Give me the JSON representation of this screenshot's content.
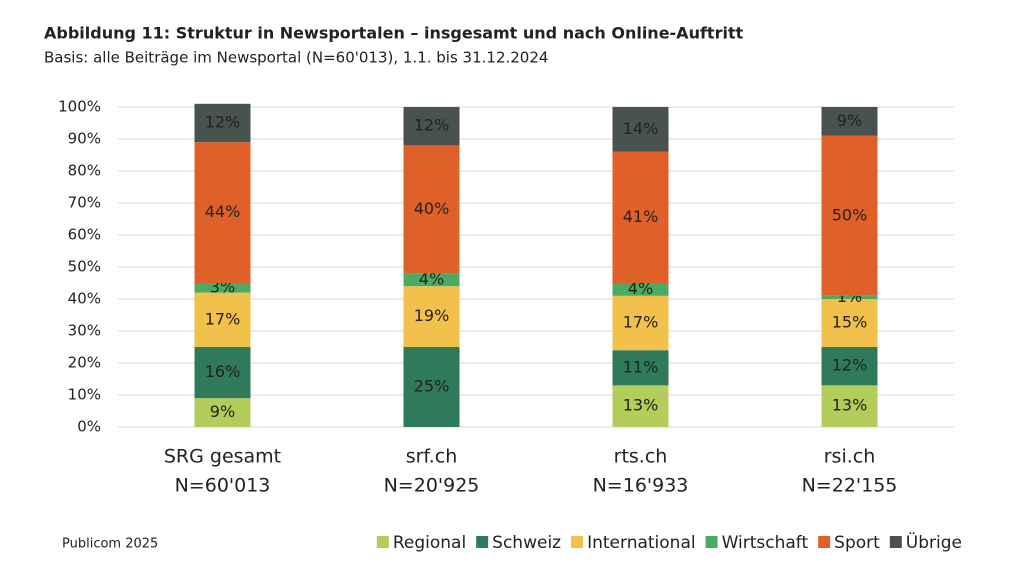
{
  "chart_data": {
    "type": "stacked_bar",
    "title": "Abbildung 11: Struktur in Newsportalen – insgesamt und nach Online-Auftritt",
    "subtitle": "Basis: alle Beiträge im Newsportal (N=60'013), 1.1. bis 31.12.2024",
    "source": "Publicom 2025",
    "categories": [
      "SRG gesamt",
      "srf.ch",
      "rts.ch",
      "rsi.ch"
    ],
    "category_counts": [
      "N=60'013",
      "N=20'925",
      "N=16'933",
      "N=22'155"
    ],
    "ylim": [
      0,
      100
    ],
    "yticks": [
      {
        "value": 0,
        "label": "0%"
      },
      {
        "value": 10,
        "label": "10%"
      },
      {
        "value": 20,
        "label": "20%"
      },
      {
        "value": 30,
        "label": "30%"
      },
      {
        "value": 40,
        "label": "40%"
      },
      {
        "value": 50,
        "label": "50%"
      },
      {
        "value": 60,
        "label": "60%"
      },
      {
        "value": 70,
        "label": "70%"
      },
      {
        "value": 80,
        "label": "80%"
      },
      {
        "value": 90,
        "label": "90%"
      },
      {
        "value": 100,
        "label": "100%"
      }
    ],
    "grid": true,
    "legend": "bottom-right",
    "series": [
      {
        "name": "Regional",
        "color": "#b3cd5a",
        "label_color": "#ffffff",
        "values": [
          9,
          null,
          13,
          13
        ],
        "value_labels": [
          "9%",
          null,
          "13%",
          "13%"
        ]
      },
      {
        "name": "Schweiz",
        "color": "#2f7a5a",
        "label_color": "#ffffff",
        "values": [
          16,
          25,
          11,
          12
        ],
        "value_labels": [
          "16%",
          "25%",
          "11%",
          "12%"
        ]
      },
      {
        "name": "International",
        "color": "#f2c14b",
        "label_color": "#222222",
        "values": [
          17,
          19,
          17,
          15
        ],
        "value_labels": [
          "17%",
          "19%",
          "17%",
          "15%"
        ]
      },
      {
        "name": "Wirtschaft",
        "color": "#4bab62",
        "label_color": "#ffffff",
        "values": [
          3,
          4,
          4,
          1
        ],
        "value_labels": [
          "3%",
          "4%",
          "4%",
          "1%"
        ]
      },
      {
        "name": "Sport",
        "color": "#e0602a",
        "label_color": "#ffffff",
        "values": [
          44,
          40,
          41,
          50
        ],
        "value_labels": [
          "44%",
          "40%",
          "41%",
          "50%"
        ]
      },
      {
        "name": "Übrige",
        "color": "#48524f",
        "label_color": "#ffffff",
        "values": [
          12,
          12,
          14,
          9
        ],
        "value_labels": [
          "12%",
          "12%",
          "14%",
          "9%"
        ]
      }
    ]
  }
}
